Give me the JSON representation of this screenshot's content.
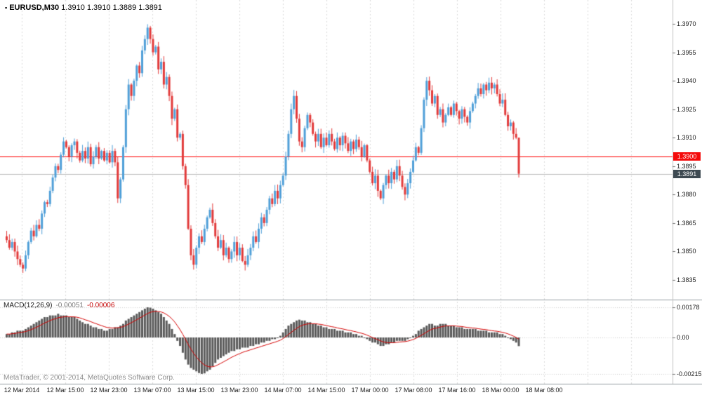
{
  "header": {
    "icon": "▪",
    "symbol": "EURUSD,M30",
    "ohlc": "1.3910 1.3910 1.3889 1.3891"
  },
  "price_axis": {
    "labels": [
      "1.3970",
      "1.3955",
      "1.3940",
      "1.3925",
      "1.3910",
      "1.3895",
      "1.3880",
      "1.3865",
      "1.3850",
      "1.3835"
    ]
  },
  "time_axis": {
    "labels": [
      "12 Mar 2014",
      "12 Mar 15:00",
      "12 Mar 23:00",
      "13 Mar 07:00",
      "13 Mar 15:00",
      "13 Mar 23:00",
      "14 Mar 07:00",
      "14 Mar 15:00",
      "17 Mar 00:00",
      "17 Mar 08:00",
      "17 Mar 16:00",
      "18 Mar 00:00",
      "18 Mar 08:00"
    ]
  },
  "hline": {
    "value": 1.39,
    "label": "1.3900"
  },
  "price_badge": {
    "value": 1.3891,
    "label": "1.3891"
  },
  "macd": {
    "name": "MACD(12,26,9)",
    "value1": "-0.00051",
    "value2": "-0.00006",
    "axis_labels": [
      "0.00178",
      "0.00",
      "-0.00215"
    ],
    "axis_values": [
      0.00178,
      0,
      -0.00215
    ]
  },
  "footer": {
    "credit": "MetaTrader, © 2001-2014, MetaQuotes Software Corp."
  },
  "colors": {
    "up": "#4f9fd8",
    "down": "#e23a3a",
    "hline": "#ff0000",
    "hline_badge": "#f40b0b",
    "badge_dark": "#3e4a52",
    "price_line": "#b8b8b8",
    "grid": "#d9d9d9",
    "histogram": "#5a5a5a",
    "signal": "#d40000"
  },
  "chart_data": {
    "type": "candlestick",
    "title": "EURUSD,M30",
    "symbol": "EURUSD",
    "timeframe": "M30",
    "x_labels": [
      "12 Mar 2014",
      "12 Mar 15:00",
      "12 Mar 23:00",
      "13 Mar 07:00",
      "13 Mar 15:00",
      "13 Mar 23:00",
      "14 Mar 07:00",
      "14 Mar 15:00",
      "17 Mar 00:00",
      "17 Mar 08:00",
      "17 Mar 16:00",
      "18 Mar 00:00",
      "18 Mar 08:00"
    ],
    "price_axis_range": [
      1.3826,
      1.3982
    ],
    "open_first": 1.3858,
    "closes": [
      1.3856,
      1.3852,
      1.3855,
      1.385,
      1.3846,
      1.3843,
      1.3841,
      1.3848,
      1.3855,
      1.3861,
      1.3858,
      1.3864,
      1.3862,
      1.387,
      1.3876,
      1.3875,
      1.3882,
      1.3889,
      1.3895,
      1.3893,
      1.3901,
      1.3908,
      1.3905,
      1.39,
      1.3906,
      1.3908,
      1.3902,
      1.3898,
      1.3903,
      1.3899,
      1.3905,
      1.3896,
      1.39,
      1.3905,
      1.3899,
      1.3903,
      1.3898,
      1.3902,
      1.3897,
      1.3903,
      1.3897,
      1.3878,
      1.3888,
      1.3905,
      1.3925,
      1.3938,
      1.3932,
      1.394,
      1.3948,
      1.3944,
      1.3956,
      1.3962,
      1.3968,
      1.3962,
      1.3955,
      1.3958,
      1.3946,
      1.395,
      1.3938,
      1.3942,
      1.3932,
      1.392,
      1.3925,
      1.391,
      1.3912,
      1.3895,
      1.3885,
      1.3862,
      1.3848,
      1.3843,
      1.3852,
      1.3858,
      1.3855,
      1.3862,
      1.3868,
      1.3872,
      1.3865,
      1.3858,
      1.3852,
      1.3856,
      1.3848,
      1.3852,
      1.3846,
      1.385,
      1.3855,
      1.3848,
      1.3852,
      1.3845,
      1.3843,
      1.3848,
      1.3852,
      1.3858,
      1.3855,
      1.3862,
      1.3868,
      1.3865,
      1.3872,
      1.3878,
      1.3875,
      1.3882,
      1.3878,
      1.3885,
      1.389,
      1.39,
      1.3912,
      1.3925,
      1.3932,
      1.392,
      1.3908,
      1.3905,
      1.3915,
      1.3922,
      1.3918,
      1.3912,
      1.3908,
      1.3912,
      1.3905,
      1.391,
      1.3906,
      1.3912,
      1.3908,
      1.3904,
      1.391,
      1.3906,
      1.3911,
      1.3907,
      1.3903,
      1.3908,
      1.3904,
      1.3909,
      1.3905,
      1.39,
      1.3906,
      1.3898,
      1.3892,
      1.3886,
      1.389,
      1.3882,
      1.3878,
      1.3885,
      1.389,
      1.3886,
      1.3892,
      1.3888,
      1.3895,
      1.389,
      1.3884,
      1.388,
      1.3886,
      1.3892,
      1.3898,
      1.3905,
      1.3902,
      1.3915,
      1.393,
      1.394,
      1.3935,
      1.3928,
      1.3932,
      1.3922,
      1.3925,
      1.3918,
      1.3922,
      1.3926,
      1.3922,
      1.3928,
      1.3924,
      1.392,
      1.3925,
      1.3921,
      1.3918,
      1.3924,
      1.3928,
      1.3932,
      1.3936,
      1.3933,
      1.3938,
      1.3935,
      1.3939,
      1.3936,
      1.3938,
      1.3933,
      1.3928,
      1.393,
      1.3922,
      1.3916,
      1.3918,
      1.3912,
      1.391,
      1.3891
    ],
    "last_candle": {
      "o": 1.391,
      "h": 1.391,
      "l": 1.3889,
      "c": 1.3891
    },
    "indicator": {
      "name": "MACD",
      "params": [
        12,
        26,
        9
      ],
      "current": [
        -0.00051,
        -6e-05
      ],
      "range": [
        -0.00215,
        0.00178
      ],
      "signal_rule": "EMA9 of histogram",
      "histogram": [
        0.0002,
        0.0002,
        0.0003,
        0.0003,
        0.0004,
        0.0004,
        0.0004,
        0.0005,
        0.0006,
        0.0007,
        0.0008,
        0.0009,
        0.001,
        0.0011,
        0.0012,
        0.0012,
        0.0013,
        0.0013,
        0.0013,
        0.0014,
        0.0013,
        0.0013,
        0.0013,
        0.0012,
        0.0012,
        0.0012,
        0.0011,
        0.001,
        0.0009,
        0.0008,
        0.0008,
        0.0007,
        0.0006,
        0.0006,
        0.0005,
        0.0005,
        0.0004,
        0.0004,
        0.0005,
        0.0005,
        0.0006,
        0.0006,
        0.0007,
        0.0008,
        0.001,
        0.0011,
        0.0012,
        0.0013,
        0.0014,
        0.0015,
        0.0016,
        0.0017,
        0.00178,
        0.00176,
        0.0017,
        0.0016,
        0.0015,
        0.0014,
        0.0012,
        0.001,
        0.0008,
        0.0005,
        0.0002,
        -0.0002,
        -0.0005,
        -0.0009,
        -0.0013,
        -0.0016,
        -0.0018,
        -0.0019,
        -0.002,
        -0.0021,
        -0.00215,
        -0.00212,
        -0.002,
        -0.0019,
        -0.0017,
        -0.0015,
        -0.0013,
        -0.0012,
        -0.0011,
        -0.001,
        -0.0009,
        -0.0008,
        -0.0008,
        -0.0007,
        -0.0007,
        -0.0006,
        -0.0006,
        -0.0006,
        -0.0005,
        -0.0005,
        -0.0004,
        -0.0004,
        -0.0003,
        -0.0003,
        -0.0002,
        -0.0002,
        -0.0001,
        -0.0001,
        0.0,
        0.0001,
        0.0003,
        0.0005,
        0.0007,
        0.0008,
        0.0009,
        0.001,
        0.00105,
        0.001,
        0.001,
        0.0009,
        0.0009,
        0.0008,
        0.0008,
        0.0007,
        0.0007,
        0.0006,
        0.0006,
        0.0005,
        0.0005,
        0.0005,
        0.0004,
        0.0004,
        0.0004,
        0.0003,
        0.0003,
        0.0003,
        0.0002,
        0.0002,
        0.0001,
        0.0001,
        0.0,
        -0.0001,
        -0.0002,
        -0.0003,
        -0.0003,
        -0.0004,
        -0.0005,
        -0.0005,
        -0.0004,
        -0.0004,
        -0.0003,
        -0.0003,
        -0.0002,
        -0.0002,
        -0.0002,
        -0.0002,
        -0.0001,
        0.0,
        0.0001,
        0.0002,
        0.0004,
        0.0005,
        0.0006,
        0.0007,
        0.0008,
        0.0008,
        0.0007,
        0.0007,
        0.0008,
        0.0008,
        0.0008,
        0.0007,
        0.0007,
        0.0007,
        0.0006,
        0.0006,
        0.0006,
        0.0005,
        0.0005,
        0.0005,
        0.0005,
        0.0005,
        0.0004,
        0.0004,
        0.0004,
        0.0004,
        0.0003,
        0.0003,
        0.0003,
        0.0003,
        0.0002,
        0.0002,
        0.0001,
        0.0,
        -0.0001,
        -0.0002,
        -0.0003,
        -0.00051
      ]
    }
  }
}
